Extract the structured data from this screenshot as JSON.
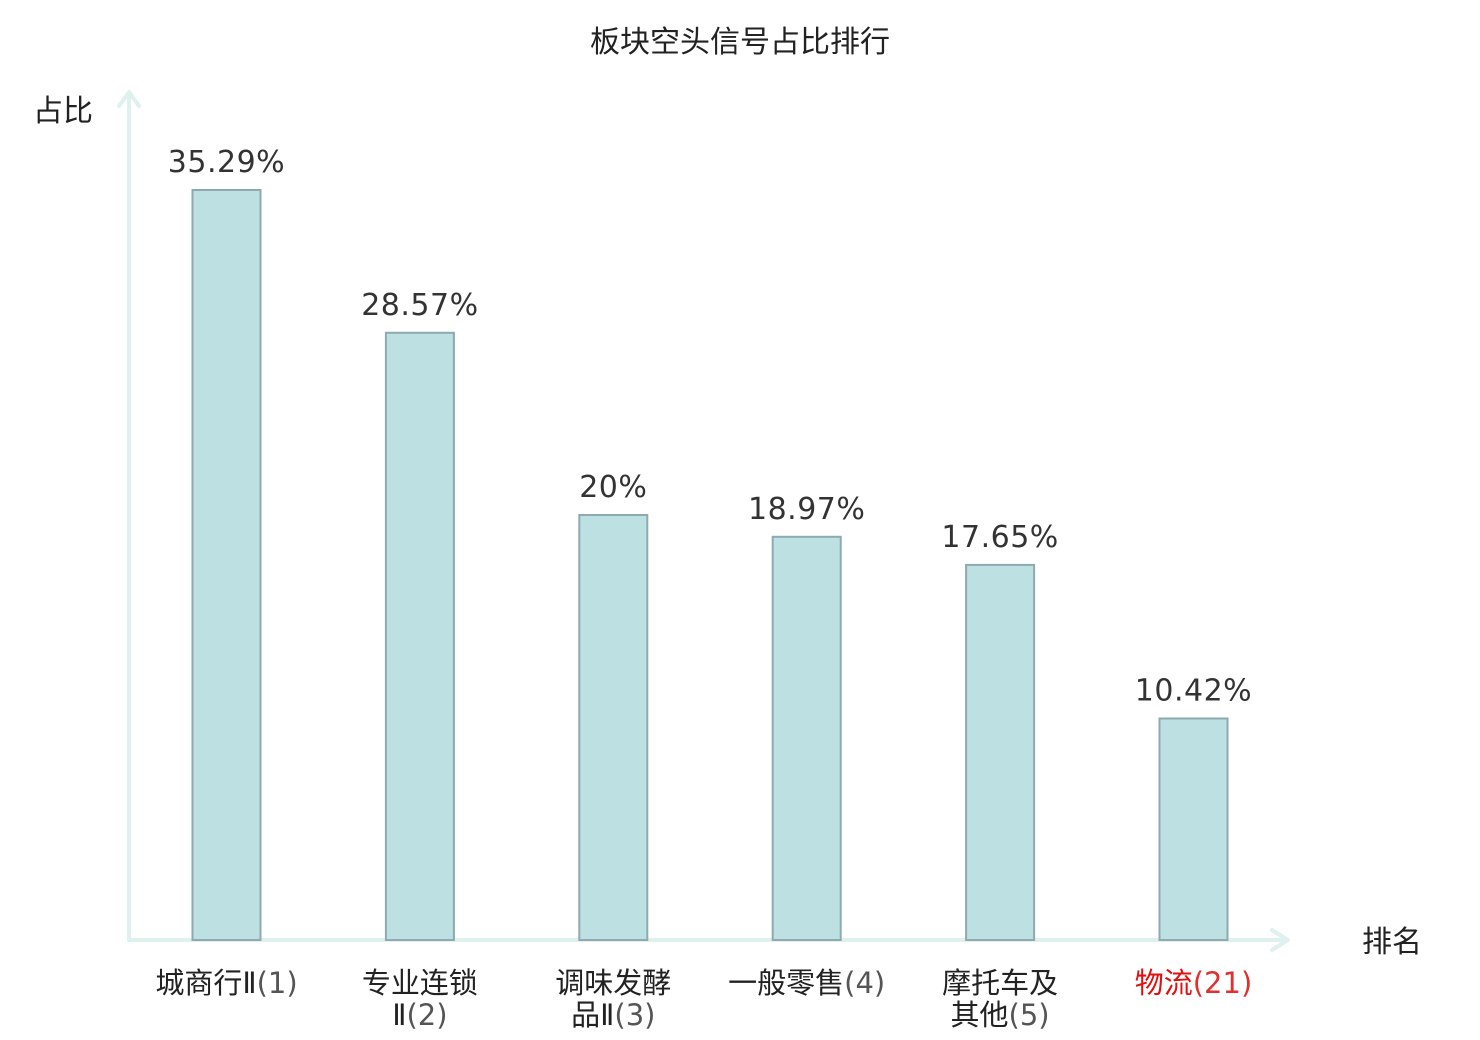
{
  "chart_data": {
    "type": "bar",
    "title": "板块空头信号占比排行",
    "ylabel": "占比",
    "xlabel": "排名",
    "categories": [
      {
        "lines": [
          {
            "name": "城商行Ⅱ",
            "suffix": "(1)"
          }
        ],
        "highlight": false
      },
      {
        "lines": [
          {
            "name": "专业连锁",
            "suffix": ""
          },
          {
            "name": "Ⅱ",
            "suffix": "(2)"
          }
        ],
        "highlight": false
      },
      {
        "lines": [
          {
            "name": "调味发酵",
            "suffix": ""
          },
          {
            "name": "品Ⅱ",
            "suffix": "(3)"
          }
        ],
        "highlight": false
      },
      {
        "lines": [
          {
            "name": "一般零售",
            "suffix": "(4)"
          }
        ],
        "highlight": false
      },
      {
        "lines": [
          {
            "name": "摩托车及",
            "suffix": ""
          },
          {
            "name": "其他",
            "suffix": "(5)"
          }
        ],
        "highlight": false
      },
      {
        "lines": [
          {
            "name": "物流",
            "suffix": "(21)"
          }
        ],
        "highlight": true
      }
    ],
    "values": [
      35.29,
      28.57,
      20,
      18.97,
      17.65,
      10.42
    ],
    "value_labels": [
      "35.29%",
      "28.57%",
      "20%",
      "18.97%",
      "17.65%",
      "10.42%"
    ],
    "ylim": [
      0,
      40
    ],
    "grid": false,
    "colors": {
      "bar_fill": "#bde0e3",
      "bar_stroke": "#8eaaaf",
      "axis": "#dff1ee",
      "highlight": "#e01010"
    }
  }
}
